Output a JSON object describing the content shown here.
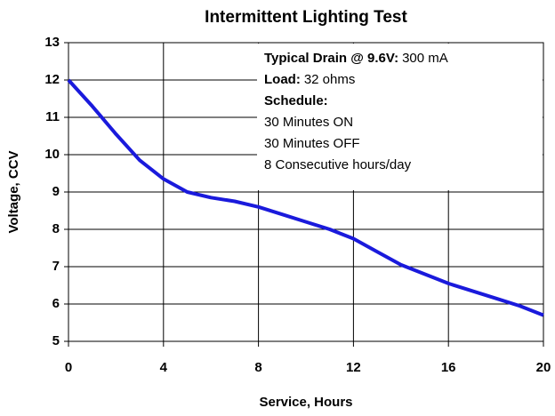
{
  "chart_data": {
    "type": "line",
    "title": "Intermittent Lighting Test",
    "x_label": "Service, Hours",
    "y_label": "Voltage, CCV",
    "x": [
      0,
      1,
      2,
      3,
      4,
      5,
      6,
      7,
      8,
      9,
      10,
      11,
      12,
      13,
      14,
      15,
      16,
      17,
      18,
      19,
      20
    ],
    "series": [
      {
        "color": "#1a1adc",
        "values": [
          12,
          11.3,
          10.55,
          9.85,
          9.35,
          9.0,
          8.85,
          8.75,
          8.6,
          8.4,
          8.2,
          8.0,
          7.75,
          7.4,
          7.05,
          6.8,
          6.55,
          6.35,
          6.15,
          5.95,
          5.7
        ]
      }
    ],
    "xlim": [
      0,
      20
    ],
    "xticks": [
      0,
      4,
      8,
      12,
      16,
      20
    ],
    "ylim": [
      5,
      13
    ],
    "yticks": [
      5,
      6,
      7,
      8,
      9,
      10,
      11,
      12,
      13
    ],
    "grid": true,
    "annotation": [
      {
        "bold": "Typical Drain @ 9.6V:",
        "text": "300 mA"
      },
      {
        "bold": "Load:",
        "text": "32 ohms"
      },
      {
        "bold": "Schedule:"
      },
      {
        "text": "30 Minutes ON"
      },
      {
        "text": "30 Minutes OFF"
      },
      {
        "text": "8 Consecutive hours/day"
      }
    ]
  }
}
